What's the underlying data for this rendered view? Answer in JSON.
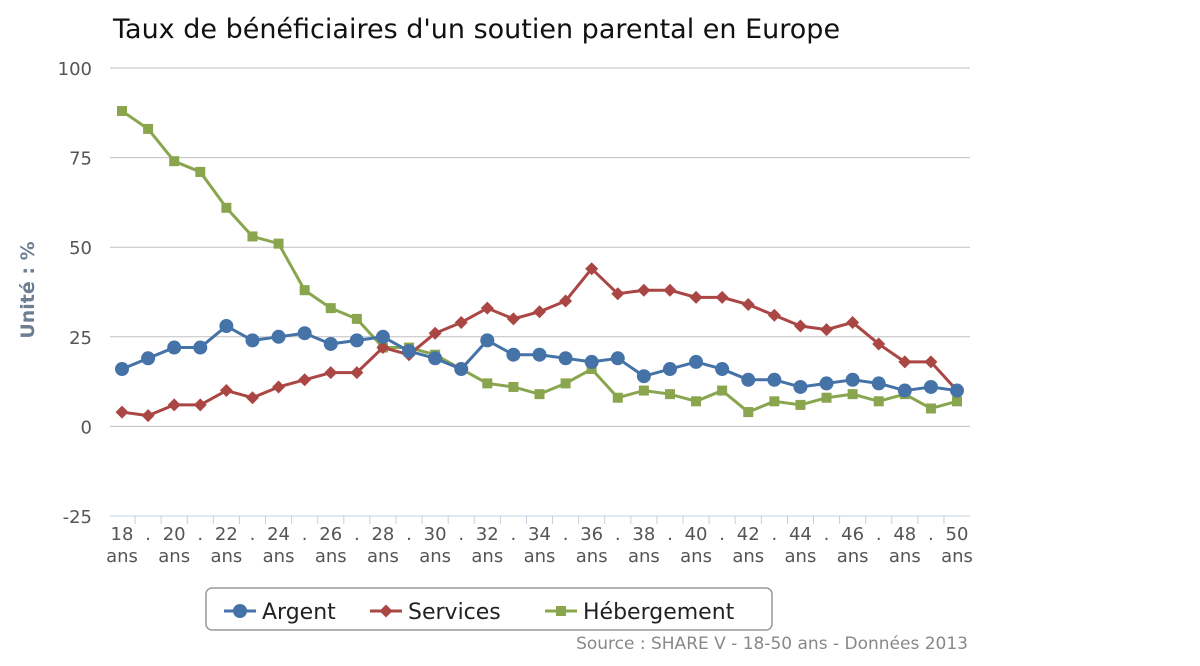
{
  "chart_data": {
    "type": "line",
    "title": "Taux de bénéficiaires d'un soutien parental en Europe",
    "ylabel": "Unité : %",
    "xlabel": "",
    "ylim": [
      -25,
      100
    ],
    "yticks": [
      100,
      75,
      50,
      25,
      0,
      -25
    ],
    "grid": true,
    "legend_position": "bottom",
    "categories": [
      "18 ans",
      "19 ans",
      "20 ans",
      "21 ans",
      "22 ans",
      "23 ans",
      "24 ans",
      "25 ans",
      "26 ans",
      "27 ans",
      "28 ans",
      "29 ans",
      "30 ans",
      "31 ans",
      "32 ans",
      "33 ans",
      "34 ans",
      "35 ans",
      "36 ans",
      "37 ans",
      "38 ans",
      "39 ans",
      "40 ans",
      "41 ans",
      "42 ans",
      "43 ans",
      "44 ans",
      "45 ans",
      "46 ans",
      "47 ans",
      "48 ans",
      "49 ans",
      "50 ans"
    ],
    "tick_labels": [
      "18 ans",
      ". ",
      "20 ans",
      ". ",
      "22 ans",
      ". ",
      "24 ans",
      ". ",
      "26 ans",
      ". ",
      "28 ans",
      ". ",
      "30 ans",
      ". ",
      "32 ans",
      ". ",
      "34 ans",
      ". ",
      "36 ans",
      ". ",
      "38 ans",
      ". ",
      "40 ans",
      ". ",
      "42 ans",
      ". ",
      "44 ans",
      ". ",
      "46 ans",
      ". ",
      "48 ans",
      ". ",
      "50 ans"
    ],
    "series": [
      {
        "name": "Argent",
        "color": "#4572a7",
        "marker": "circle",
        "values": [
          16,
          19,
          22,
          22,
          28,
          24,
          25,
          26,
          23,
          24,
          25,
          21,
          19,
          16,
          24,
          20,
          20,
          19,
          18,
          19,
          14,
          16,
          18,
          16,
          13,
          13,
          11,
          12,
          13,
          12,
          10,
          11,
          10
        ]
      },
      {
        "name": "Services",
        "color": "#aa4643",
        "marker": "diamond",
        "values": [
          4,
          3,
          6,
          6,
          10,
          8,
          11,
          13,
          15,
          15,
          22,
          20,
          26,
          29,
          33,
          30,
          32,
          35,
          44,
          37,
          38,
          38,
          36,
          36,
          34,
          31,
          28,
          27,
          29,
          23,
          18,
          18,
          10
        ]
      },
      {
        "name": "Hébergement",
        "color": "#89a54e",
        "marker": "square",
        "values": [
          88,
          83,
          74,
          71,
          61,
          53,
          51,
          38,
          33,
          30,
          22,
          22,
          20,
          16,
          12,
          11,
          9,
          12,
          16,
          8,
          10,
          9,
          7,
          10,
          4,
          7,
          6,
          8,
          9,
          7,
          9,
          5,
          7
        ]
      }
    ],
    "source": "Source : SHARE V - 18-50 ans - Données 2013"
  }
}
